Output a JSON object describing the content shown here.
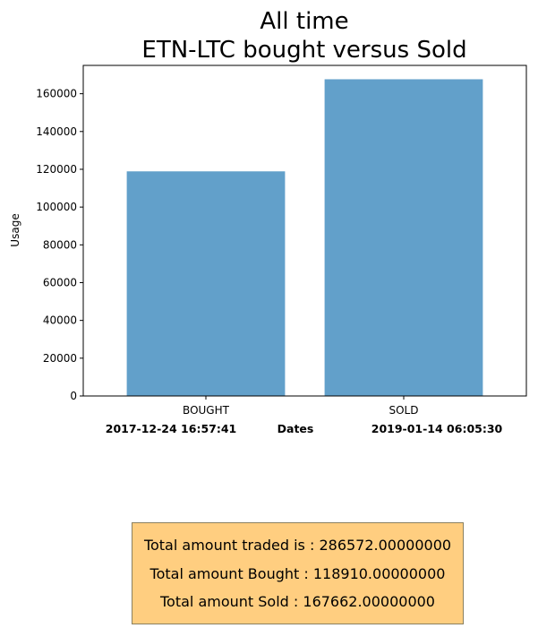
{
  "chart_data": {
    "type": "bar",
    "title_lines": [
      "All time",
      "ETN-LTC bought versus Sold"
    ],
    "categories": [
      "BOUGHT",
      "SOLD"
    ],
    "values": [
      118910,
      167662
    ],
    "xlabel": "Dates",
    "ylabel": "Usage",
    "ylim": [
      0,
      175000
    ],
    "yticks": [
      0,
      20000,
      40000,
      60000,
      80000,
      100000,
      120000,
      140000,
      160000
    ],
    "date_left": "2017-12-24 16:57:41",
    "date_right": "2019-01-14 06:05:30",
    "bar_color": "#62a0ca",
    "grid": false
  },
  "summary": {
    "total_traded": "Total amount traded is : 286572.00000000",
    "total_bought": "Total amount Bought : 118910.00000000",
    "total_sold": "Total amount Sold : 167662.00000000",
    "box_color": "#ffce80"
  }
}
